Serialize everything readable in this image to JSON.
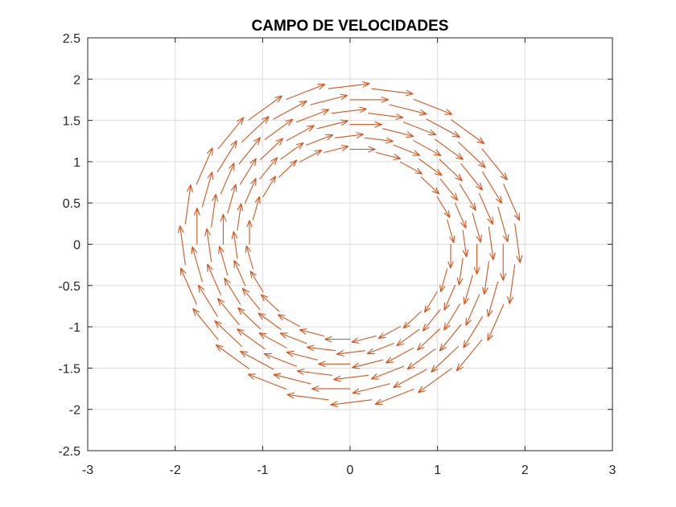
{
  "chart_data": {
    "type": "quiver",
    "title": "CAMPO DE VELOCIDADES",
    "xlabel": "",
    "ylabel": "",
    "xlim": [
      -3,
      3
    ],
    "ylim": [
      -2.5,
      2.5
    ],
    "xticks": [
      "-3",
      "-2",
      "-1",
      "0",
      "1",
      "2",
      "3"
    ],
    "yticks": [
      "2.5",
      "2",
      "1.5",
      "1",
      "0.5",
      "0",
      "-0.5",
      "-1",
      "-1.5",
      "-2",
      "-2.5"
    ],
    "grid": true,
    "arrow_color": "#D95319",
    "field": {
      "description_of_vectors": "tangential (clockwise) velocity field on an annulus",
      "inner_radius": 1.1,
      "outer_radius": 2.0,
      "radii": [
        1.15,
        1.3,
        1.45,
        1.6,
        1.75,
        1.9
      ],
      "angular_step_deg": 15,
      "speed_per_radius": 0.25,
      "rotation": "clockwise"
    }
  }
}
